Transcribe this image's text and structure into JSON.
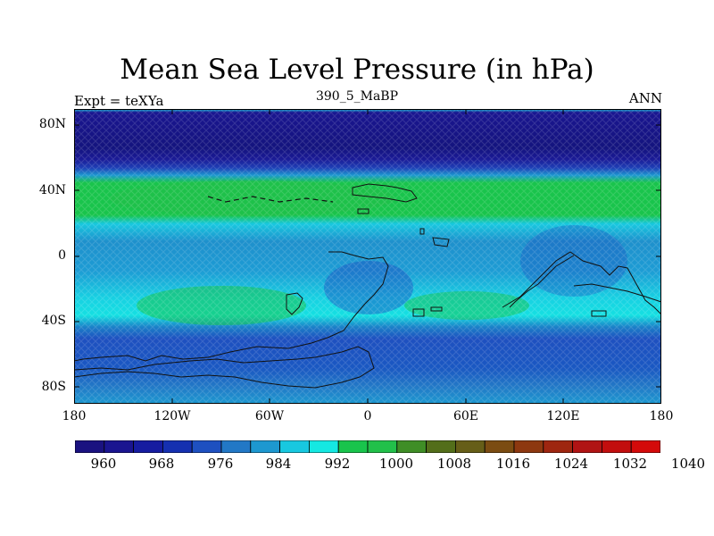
{
  "title": "Mean Sea Level Pressure (in hPa)",
  "left_label": "Expt = teXYa",
  "center_label": "390_5_MaBP",
  "right_label": "ANN",
  "y_ticks": [
    "80N",
    "40N",
    "0",
    "40S",
    "80S"
  ],
  "x_ticks": [
    "180",
    "120W",
    "60W",
    "0",
    "60E",
    "120E",
    "180"
  ],
  "colorbar": {
    "labels": [
      "960",
      "968",
      "976",
      "984",
      "992",
      "1000",
      "1008",
      "1016",
      "1024",
      "1032",
      "1040"
    ],
    "colors": [
      "#1a1280",
      "#1a1590",
      "#161ca0",
      "#1530b0",
      "#1e50c0",
      "#2278c6",
      "#1d98d0",
      "#18c8e0",
      "#15e8e2",
      "#19c44c",
      "#22c04a",
      "#3f8e26",
      "#536e1a",
      "#665e18",
      "#7b4c12",
      "#8d3810",
      "#9e2610",
      "#b01414",
      "#c20e0e",
      "#d40a0a"
    ]
  },
  "chart_data": {
    "type": "heatmap",
    "title": "Mean Sea Level Pressure (in hPa)",
    "subtitle": "390_5_MaBP",
    "xlim": [
      -180,
      180
    ],
    "ylim": [
      -90,
      90
    ],
    "latitude_bands": [
      {
        "lat_from": 90,
        "lat_to": 60,
        "pressure": 962
      },
      {
        "lat_from": 60,
        "lat_to": 45,
        "pressure": 985
      },
      {
        "lat_from": 45,
        "lat_to": 25,
        "pressure": 1006
      },
      {
        "lat_from": 25,
        "lat_to": 10,
        "pressure": 1000
      },
      {
        "lat_from": 10,
        "lat_to": -15,
        "pressure": 994
      },
      {
        "lat_from": -15,
        "lat_to": -40,
        "pressure": 1002
      },
      {
        "lat_from": -40,
        "lat_to": -55,
        "pressure": 988
      },
      {
        "lat_from": -55,
        "lat_to": -90,
        "pressure": 985
      }
    ],
    "highs": [
      {
        "lon": -120,
        "lat": 35,
        "pressure": 1008
      },
      {
        "lon": -60,
        "lat": -30,
        "pressure": 1005
      },
      {
        "lon": 45,
        "lat": -30,
        "pressure": 1005
      }
    ]
  }
}
